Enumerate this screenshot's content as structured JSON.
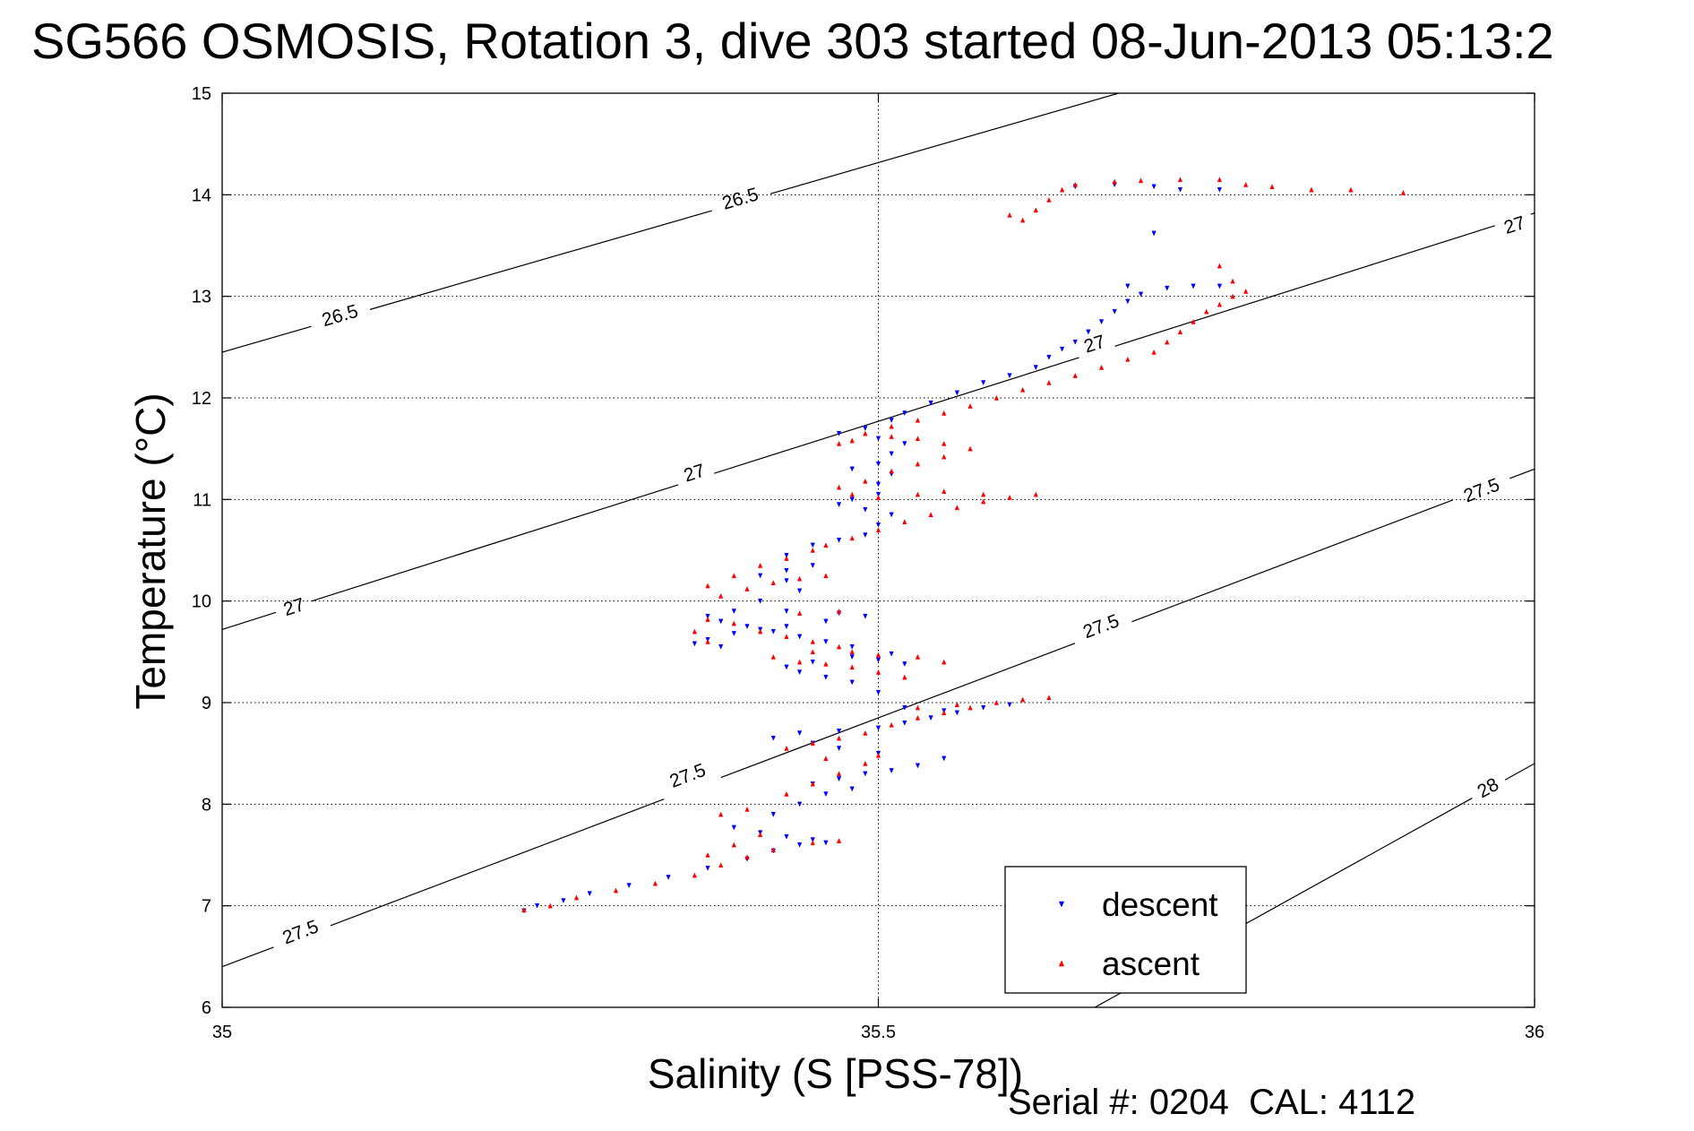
{
  "title": "SG566 OSMOSIS, Rotation 3, dive 303 started 08-Jun-2013 05:13:2",
  "footer": "Serial #: 0204  CAL: 4112",
  "chart_data": {
    "type": "scatter",
    "title": "SG566 OSMOSIS, Rotation 3, dive 303 started 08-Jun-2013 05:13:2",
    "xlabel": "Salinity (S [PSS-78])",
    "ylabel": "Temperature (°C)",
    "xlim": [
      35,
      36
    ],
    "ylim": [
      6,
      15
    ],
    "x_ticks": [
      35,
      35.5,
      36
    ],
    "x_tick_labels": [
      "35",
      "35.5",
      "36"
    ],
    "y_ticks": [
      6,
      7,
      8,
      9,
      10,
      11,
      12,
      13,
      14,
      15
    ],
    "y_tick_labels": [
      "6",
      "7",
      "8",
      "9",
      "10",
      "11",
      "12",
      "13",
      "14",
      "15"
    ],
    "grid": true,
    "legend_position": "bottom-right",
    "colors": {
      "descent": "#0000ff",
      "ascent": "#ff0000",
      "contour": "#000000"
    },
    "density_contours": [
      {
        "level": 26.5,
        "label": "26.5",
        "points": [
          [
            35.0,
            12.45
          ],
          [
            35.683,
            15.0
          ]
        ],
        "labels_at": [
          [
            35.09,
            12.8
          ],
          [
            35.395,
            13.95
          ]
        ]
      },
      {
        "level": 27,
        "label": "27",
        "points": [
          [
            35.0,
            9.72
          ],
          [
            36.0,
            13.82
          ]
        ],
        "labels_at": [
          [
            35.055,
            9.93
          ],
          [
            35.36,
            11.25
          ],
          [
            35.665,
            12.52
          ],
          [
            35.985,
            13.69
          ]
        ]
      },
      {
        "level": 27.5,
        "label": "27.5",
        "points": [
          [
            35.0,
            6.4
          ],
          [
            36.0,
            11.3
          ]
        ],
        "labels_at": [
          [
            35.06,
            6.73
          ],
          [
            35.355,
            8.27
          ],
          [
            35.67,
            9.74
          ],
          [
            35.96,
            11.08
          ]
        ]
      },
      {
        "level": 28,
        "label": "28",
        "points": [
          [
            35.665,
            6.0
          ],
          [
            36.0,
            8.4
          ]
        ],
        "labels_at": [
          [
            35.965,
            8.15
          ]
        ]
      }
    ],
    "series": [
      {
        "name": "descent",
        "marker": "triangle-down",
        "color": "#0000ff",
        "points": [
          [
            35.23,
            6.95
          ],
          [
            35.24,
            7.0
          ],
          [
            35.26,
            7.05
          ],
          [
            35.28,
            7.12
          ],
          [
            35.31,
            7.2
          ],
          [
            35.34,
            7.28
          ],
          [
            35.37,
            7.37
          ],
          [
            35.4,
            7.46
          ],
          [
            35.42,
            7.54
          ],
          [
            35.44,
            7.6
          ],
          [
            35.46,
            7.62
          ],
          [
            35.45,
            7.65
          ],
          [
            35.43,
            7.68
          ],
          [
            35.41,
            7.72
          ],
          [
            35.39,
            7.77
          ],
          [
            35.42,
            7.9
          ],
          [
            35.44,
            8.0
          ],
          [
            35.46,
            8.1
          ],
          [
            35.48,
            8.15
          ],
          [
            35.45,
            8.2
          ],
          [
            35.47,
            8.25
          ],
          [
            35.49,
            8.3
          ],
          [
            35.51,
            8.33
          ],
          [
            35.53,
            8.38
          ],
          [
            35.55,
            8.45
          ],
          [
            35.5,
            8.5
          ],
          [
            35.47,
            8.55
          ],
          [
            35.45,
            8.6
          ],
          [
            35.42,
            8.65
          ],
          [
            35.44,
            8.7
          ],
          [
            35.47,
            8.72
          ],
          [
            35.5,
            8.75
          ],
          [
            35.52,
            8.8
          ],
          [
            35.54,
            8.85
          ],
          [
            35.56,
            8.9
          ],
          [
            35.58,
            8.95
          ],
          [
            35.6,
            8.98
          ],
          [
            35.55,
            8.92
          ],
          [
            35.52,
            8.95
          ],
          [
            35.5,
            9.1
          ],
          [
            35.48,
            9.2
          ],
          [
            35.46,
            9.25
          ],
          [
            35.44,
            9.3
          ],
          [
            35.43,
            9.35
          ],
          [
            35.45,
            9.4
          ],
          [
            35.48,
            9.45
          ],
          [
            35.5,
            9.42
          ],
          [
            35.52,
            9.38
          ],
          [
            35.51,
            9.48
          ],
          [
            35.48,
            9.55
          ],
          [
            35.46,
            9.6
          ],
          [
            35.44,
            9.65
          ],
          [
            35.42,
            9.7
          ],
          [
            35.4,
            9.75
          ],
          [
            35.38,
            9.8
          ],
          [
            35.37,
            9.85
          ],
          [
            35.39,
            9.9
          ],
          [
            35.43,
            9.9
          ],
          [
            35.47,
            9.88
          ],
          [
            35.49,
            9.85
          ],
          [
            35.46,
            9.8
          ],
          [
            35.43,
            9.75
          ],
          [
            35.41,
            9.72
          ],
          [
            35.39,
            9.68
          ],
          [
            35.37,
            9.62
          ],
          [
            35.36,
            9.58
          ],
          [
            35.38,
            9.55
          ],
          [
            35.41,
            10.0
          ],
          [
            35.44,
            10.1
          ],
          [
            35.43,
            10.2
          ],
          [
            35.41,
            10.25
          ],
          [
            35.43,
            10.3
          ],
          [
            35.45,
            10.35
          ],
          [
            35.43,
            10.45
          ],
          [
            35.45,
            10.55
          ],
          [
            35.47,
            10.6
          ],
          [
            35.49,
            10.65
          ],
          [
            35.5,
            10.75
          ],
          [
            35.51,
            10.85
          ],
          [
            35.49,
            10.9
          ],
          [
            35.47,
            10.95
          ],
          [
            35.48,
            11.0
          ],
          [
            35.5,
            11.05
          ],
          [
            35.5,
            11.15
          ],
          [
            35.51,
            11.25
          ],
          [
            35.48,
            11.3
          ],
          [
            35.5,
            11.35
          ],
          [
            35.51,
            11.45
          ],
          [
            35.52,
            11.55
          ],
          [
            35.5,
            11.6
          ],
          [
            35.47,
            11.65
          ],
          [
            35.49,
            11.7
          ],
          [
            35.51,
            11.78
          ],
          [
            35.52,
            11.85
          ],
          [
            35.54,
            11.95
          ],
          [
            35.56,
            12.05
          ],
          [
            35.58,
            12.15
          ],
          [
            35.6,
            12.22
          ],
          [
            35.62,
            12.3
          ],
          [
            35.63,
            12.4
          ],
          [
            35.64,
            12.48
          ],
          [
            35.65,
            12.55
          ],
          [
            35.66,
            12.65
          ],
          [
            35.67,
            12.75
          ],
          [
            35.68,
            12.85
          ],
          [
            35.69,
            12.95
          ],
          [
            35.7,
            13.02
          ],
          [
            35.72,
            13.08
          ],
          [
            35.74,
            13.1
          ],
          [
            35.76,
            13.1
          ],
          [
            35.69,
            13.1
          ],
          [
            35.71,
            13.62
          ],
          [
            35.65,
            14.08
          ],
          [
            35.68,
            14.1
          ],
          [
            35.71,
            14.08
          ],
          [
            35.73,
            14.05
          ],
          [
            35.76,
            14.05
          ]
        ]
      },
      {
        "name": "ascent",
        "marker": "triangle-up",
        "color": "#ff0000",
        "points": [
          [
            35.23,
            6.96
          ],
          [
            35.25,
            7.0
          ],
          [
            35.27,
            7.08
          ],
          [
            35.3,
            7.15
          ],
          [
            35.33,
            7.22
          ],
          [
            35.36,
            7.3
          ],
          [
            35.38,
            7.4
          ],
          [
            35.4,
            7.48
          ],
          [
            35.42,
            7.55
          ],
          [
            35.45,
            7.62
          ],
          [
            35.47,
            7.64
          ],
          [
            35.37,
            7.5
          ],
          [
            35.39,
            7.6
          ],
          [
            35.41,
            7.7
          ],
          [
            35.38,
            7.9
          ],
          [
            35.4,
            7.95
          ],
          [
            35.43,
            8.1
          ],
          [
            35.45,
            8.2
          ],
          [
            35.47,
            8.3
          ],
          [
            35.49,
            8.4
          ],
          [
            35.46,
            8.45
          ],
          [
            35.5,
            8.48
          ],
          [
            35.43,
            8.55
          ],
          [
            35.45,
            8.6
          ],
          [
            35.47,
            8.65
          ],
          [
            35.49,
            8.7
          ],
          [
            35.51,
            8.78
          ],
          [
            35.53,
            8.85
          ],
          [
            35.55,
            8.9
          ],
          [
            35.57,
            8.95
          ],
          [
            35.59,
            9.0
          ],
          [
            35.61,
            9.03
          ],
          [
            35.63,
            9.05
          ],
          [
            35.56,
            8.98
          ],
          [
            35.53,
            8.95
          ],
          [
            35.52,
            9.25
          ],
          [
            35.5,
            9.3
          ],
          [
            35.48,
            9.35
          ],
          [
            35.46,
            9.38
          ],
          [
            35.44,
            9.4
          ],
          [
            35.42,
            9.45
          ],
          [
            35.45,
            9.5
          ],
          [
            35.48,
            9.5
          ],
          [
            35.5,
            9.47
          ],
          [
            35.53,
            9.45
          ],
          [
            35.55,
            9.4
          ],
          [
            35.47,
            9.55
          ],
          [
            35.45,
            9.6
          ],
          [
            35.43,
            9.65
          ],
          [
            35.41,
            9.7
          ],
          [
            35.39,
            9.78
          ],
          [
            35.37,
            9.82
          ],
          [
            35.36,
            9.7
          ],
          [
            35.37,
            9.6
          ],
          [
            35.44,
            9.88
          ],
          [
            35.47,
            9.9
          ],
          [
            35.38,
            10.05
          ],
          [
            35.4,
            10.12
          ],
          [
            35.42,
            10.18
          ],
          [
            35.44,
            10.22
          ],
          [
            35.46,
            10.25
          ],
          [
            35.37,
            10.15
          ],
          [
            35.39,
            10.25
          ],
          [
            35.41,
            10.35
          ],
          [
            35.43,
            10.42
          ],
          [
            35.45,
            10.5
          ],
          [
            35.46,
            10.55
          ],
          [
            35.48,
            10.62
          ],
          [
            35.5,
            10.7
          ],
          [
            35.52,
            10.78
          ],
          [
            35.54,
            10.85
          ],
          [
            35.56,
            10.92
          ],
          [
            35.58,
            10.98
          ],
          [
            35.6,
            11.02
          ],
          [
            35.62,
            11.05
          ],
          [
            35.58,
            11.05
          ],
          [
            35.55,
            11.08
          ],
          [
            35.53,
            11.05
          ],
          [
            35.5,
            11.02
          ],
          [
            35.48,
            11.05
          ],
          [
            35.47,
            11.12
          ],
          [
            35.49,
            11.18
          ],
          [
            35.51,
            11.28
          ],
          [
            35.53,
            11.35
          ],
          [
            35.55,
            11.42
          ],
          [
            35.57,
            11.5
          ],
          [
            35.55,
            11.55
          ],
          [
            35.53,
            11.6
          ],
          [
            35.51,
            11.62
          ],
          [
            35.48,
            11.58
          ],
          [
            35.47,
            11.55
          ],
          [
            35.49,
            11.65
          ],
          [
            35.51,
            11.72
          ],
          [
            35.53,
            11.78
          ],
          [
            35.55,
            11.85
          ],
          [
            35.57,
            11.92
          ],
          [
            35.59,
            12.0
          ],
          [
            35.61,
            12.08
          ],
          [
            35.63,
            12.15
          ],
          [
            35.65,
            12.22
          ],
          [
            35.67,
            12.3
          ],
          [
            35.69,
            12.38
          ],
          [
            35.71,
            12.45
          ],
          [
            35.72,
            12.55
          ],
          [
            35.73,
            12.65
          ],
          [
            35.74,
            12.75
          ],
          [
            35.75,
            12.85
          ],
          [
            35.76,
            12.92
          ],
          [
            35.77,
            13.0
          ],
          [
            35.78,
            13.05
          ],
          [
            35.77,
            13.15
          ],
          [
            35.76,
            13.3
          ],
          [
            35.62,
            13.85
          ],
          [
            35.63,
            13.95
          ],
          [
            35.64,
            14.05
          ],
          [
            35.65,
            14.1
          ],
          [
            35.68,
            14.13
          ],
          [
            35.7,
            14.14
          ],
          [
            35.73,
            14.15
          ],
          [
            35.76,
            14.15
          ],
          [
            35.78,
            14.1
          ],
          [
            35.8,
            14.08
          ],
          [
            35.83,
            14.05
          ],
          [
            35.86,
            14.05
          ],
          [
            35.9,
            14.02
          ],
          [
            35.61,
            13.75
          ],
          [
            35.6,
            13.8
          ]
        ]
      }
    ]
  }
}
